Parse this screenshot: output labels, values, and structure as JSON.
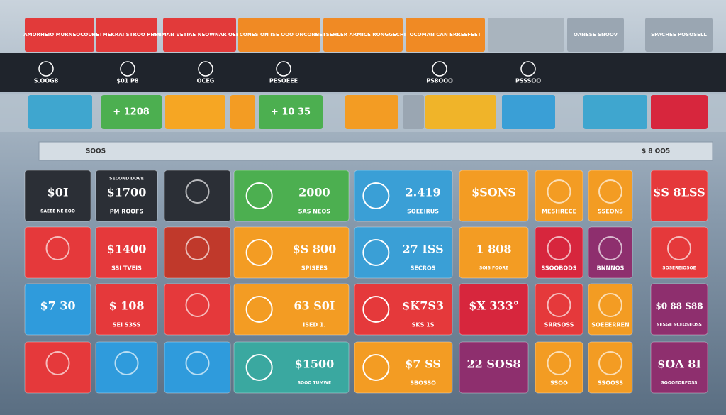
{
  "header": {
    "tabs": [
      "AMORHEIO MURNEOCOUT",
      "HETMEKRAI STROO PHFE",
      "AMMAN VETIAE NEOWNAR OEBET",
      "CONES ON ISE OOO ONCONS",
      "HETSEHLER ARMICE RONGGECHIIE",
      "OCOMAN CAN ERREEFEET",
      "OANESE SNOOV",
      "SPACHEE POSOSELL"
    ],
    "row": [
      "S.OOG8",
      "$01 P8",
      "OCEG",
      "PESOEEE",
      "PS8OOO",
      "PSSSOO"
    ],
    "strip": [
      "+ 1208",
      "+ 10 35"
    ],
    "bar": [
      "SOOS",
      "$ 8 OO5"
    ]
  },
  "tiles": [
    [
      {
        "t": "$0I",
        "s": "SAEEE NE EOO"
      },
      {
        "h": "SECOND DOVE",
        "t": "$1700",
        "s": "PM ROOFS"
      },
      {},
      {
        "t": "2000",
        "s": "SAS NEOS"
      },
      {
        "t": "2.419",
        "s": "SOEEIRUS"
      },
      {
        "t": "$SONS"
      },
      {
        "s": "MESHRECE"
      },
      {
        "s": "SSEONS"
      },
      {
        "t": "$S 8LSS"
      }
    ],
    [
      {},
      {
        "t": "$1400",
        "s": "SSI TVEIS"
      },
      {},
      {
        "t": "$S 800",
        "s": "SPISEES"
      },
      {
        "t": "27 ISS",
        "s": "SECROS"
      },
      {
        "t": "1 808",
        "s": "SOIS FOORE"
      },
      {
        "s": "SSOOBODS"
      },
      {
        "s": "BNNNOS"
      },
      {
        "s": "SOSEREIOSOE"
      }
    ],
    [
      {
        "t": "$7 30"
      },
      {
        "t": "$ 108",
        "s": "SEI S3SS"
      },
      {},
      {
        "t": "63 S0I",
        "s": "ISED 1."
      },
      {
        "t": "$K7S3",
        "s": "SKS 1S"
      },
      {
        "t": "$X 333°"
      },
      {
        "s": "SRRSOSS"
      },
      {
        "s": "SOEEERREN"
      },
      {
        "t": "$0 88 S88",
        "s": "SESGE SCEOSEOSS"
      }
    ],
    [
      {},
      {},
      {},
      {
        "t": "$1500",
        "s": "SOOO TUMWE"
      },
      {
        "t": "$7 SS",
        "s": "SBOSSO"
      },
      {
        "t": "22 SOS8"
      },
      {
        "s": "SSOO"
      },
      {
        "s": "SSOOSS"
      },
      {
        "t": "$OA 8I",
        "s": "SOOOEORFOSS"
      }
    ]
  ]
}
